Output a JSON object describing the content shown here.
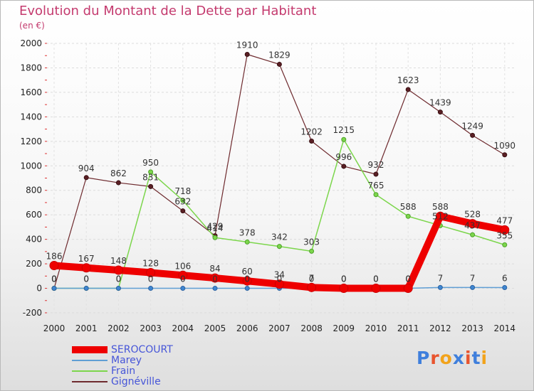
{
  "title": "Evolution du Montant de la Dette par Habitant",
  "unit_label": "(en €)",
  "logo_text": "Proxiti",
  "logo_colors": [
    "#3f7fdc",
    "#e8542e",
    "#f2a31b",
    "#3f7fdc",
    "#e8542e",
    "#3f7fdc",
    "#f2a31b"
  ],
  "chart_data": {
    "type": "line",
    "x": [
      "2000",
      "2001",
      "2002",
      "2003",
      "2004",
      "2005",
      "2006",
      "2007",
      "2008",
      "2009",
      "2010",
      "2011",
      "2012",
      "2013",
      "2014"
    ],
    "ylim": [
      -200,
      2000
    ],
    "yticks": [
      "2000",
      "1800",
      "1600",
      "1400",
      "1200",
      "1000",
      "800",
      "600",
      "400",
      "200",
      "0",
      "-200"
    ],
    "grid": true,
    "legend_position": "bottom-left",
    "series": [
      {
        "name": "Gignéville",
        "color": "#6e2a2e",
        "values": [
          0,
          904,
          862,
          831,
          632,
          429,
          1910,
          1829,
          1202,
          996,
          932,
          1623,
          1439,
          1249,
          1090
        ],
        "labels": [
          "0",
          "904",
          "862",
          "831",
          "632",
          "429",
          "1910",
          "1829",
          "1202",
          "996",
          "932",
          "1623",
          "1439",
          "1249",
          "1090"
        ]
      },
      {
        "name": "Frain",
        "color": "#7cd64c",
        "values": [
          0,
          0,
          0,
          950,
          718,
          414,
          378,
          342,
          303,
          1215,
          765,
          588,
          512,
          437,
          355
        ],
        "labels": [
          "0",
          "0",
          "0",
          "950",
          "718",
          "414",
          "378",
          "342",
          "303",
          "1215",
          "765",
          "588",
          "512",
          "437",
          "355"
        ]
      },
      {
        "name": "Marey",
        "color": "#5f9ed4",
        "values": [
          0,
          0,
          0,
          0,
          0,
          0,
          0,
          0,
          0,
          0,
          0,
          0,
          7,
          7,
          6
        ],
        "labels": [
          "0",
          "0",
          "0",
          "0",
          "0",
          "0",
          "0",
          "0",
          "0",
          "0",
          "0",
          "0",
          "7",
          "7",
          "6"
        ]
      },
      {
        "name": "SEROCOURT",
        "color": "#ee0000",
        "values": [
          186,
          167,
          148,
          128,
          106,
          84,
          60,
          34,
          7,
          0,
          0,
          0,
          588,
          528,
          477
        ],
        "labels": [
          "186",
          "167",
          "148",
          "128",
          "106",
          "84",
          "60",
          "34",
          "7",
          "0",
          "0",
          "0",
          "588",
          "528",
          "477"
        ]
      }
    ]
  },
  "legend_order": [
    "SEROCOURT",
    "Marey",
    "Frain",
    "Gignéville"
  ]
}
